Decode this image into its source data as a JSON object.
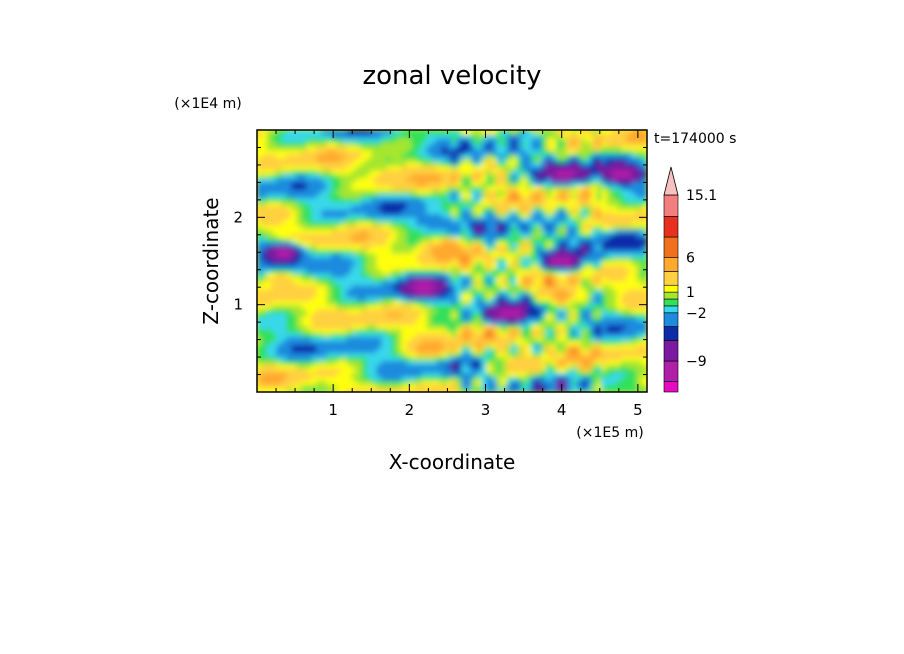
{
  "chart_data": {
    "type": "heatmap",
    "title": "zonal velocity",
    "xlabel": "X-coordinate",
    "ylabel": "Z-coordinate",
    "x_unit": "(×1E5 m)",
    "y_unit": "(×1E4 m)",
    "time_label": "t=174000 s",
    "xlim": [
      0,
      5.12
    ],
    "ylim": [
      0,
      3.0
    ],
    "x_ticks": [
      "1",
      "2",
      "3",
      "4",
      "5"
    ],
    "y_ticks": [
      "1",
      "2"
    ],
    "colorbar": {
      "levels": [
        -13.5,
        -12,
        -9,
        -6,
        -4,
        -2,
        -1,
        0,
        1,
        2,
        4,
        6,
        9,
        12,
        15.1
      ],
      "colors": [
        "#e60bbf",
        "#b01fa8",
        "#7a1aa0",
        "#0f2ca8",
        "#1e8bde",
        "#37d8ea",
        "#32e05a",
        "#a6e62e",
        "#ffff10",
        "#ffd040",
        "#ffa92e",
        "#f0701c",
        "#e83020",
        "#f37e7e",
        "#f9c0c0"
      ],
      "tick_labels": [
        "15.1",
        "6",
        "1",
        "−2",
        "−9"
      ],
      "extend_top": true
    },
    "field_features": [
      {
        "x": 0.35,
        "z": 1.6,
        "value": -12
      },
      {
        "x": 2.35,
        "z": 1.95,
        "value": -4
      },
      {
        "x": 2.2,
        "z": 1.2,
        "value": -12
      },
      {
        "x": 3.3,
        "z": 0.9,
        "value": -12
      },
      {
        "x": 4.0,
        "z": 1.5,
        "value": -12
      },
      {
        "x": 4.05,
        "z": 2.5,
        "value": -12
      },
      {
        "x": 4.8,
        "z": 2.5,
        "value": -12
      },
      {
        "x": 4.8,
        "z": 1.75,
        "value": -6
      },
      {
        "x": 2.5,
        "z": 1.65,
        "value": 6
      },
      {
        "x": 0.3,
        "z": 1.3,
        "value": 4
      },
      {
        "x": 2.3,
        "z": 0.5,
        "value": 6
      },
      {
        "x": 4.0,
        "z": 1.1,
        "value": 6
      },
      {
        "x": 1.8,
        "z": 2.45,
        "value": 4
      },
      {
        "x": 3.5,
        "z": 0.3,
        "value": 4
      }
    ]
  }
}
